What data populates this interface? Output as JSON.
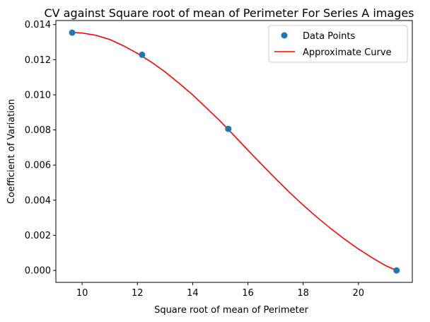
{
  "chart_data": {
    "type": "scatter",
    "title": "CV against Square root of mean of Perimeter For Series A images",
    "xlabel": "Square root of mean of Perimeter",
    "ylabel": "Coefficient of Variation",
    "xlim": [
      9.05,
      21.95
    ],
    "ylim": [
      -0.00068,
      0.01423
    ],
    "x_ticks": [
      10,
      12,
      14,
      16,
      18,
      20
    ],
    "x_tick_labels": [
      "10",
      "12",
      "14",
      "16",
      "18",
      "20"
    ],
    "y_ticks": [
      0.0,
      0.002,
      0.004,
      0.006,
      0.008,
      0.01,
      0.012,
      0.014
    ],
    "y_tick_labels": [
      "0.000",
      "0.002",
      "0.004",
      "0.006",
      "0.008",
      "0.010",
      "0.012",
      "0.014"
    ],
    "grid": false,
    "legend_position": "top-right",
    "series": [
      {
        "name": "Data Points",
        "kind": "scatter",
        "color": "#1f77b4",
        "x": [
          9.64,
          12.17,
          15.29,
          21.38
        ],
        "y": [
          0.01354,
          0.01228,
          0.00806,
          0.0
        ]
      },
      {
        "name": "Approximate Curve",
        "kind": "line",
        "color": "#ff0000",
        "x": [
          9.64,
          10.0,
          10.5,
          11.0,
          11.5,
          12.0,
          12.5,
          13.0,
          13.5,
          14.0,
          14.5,
          15.0,
          15.5,
          16.0,
          16.5,
          17.0,
          17.5,
          18.0,
          18.5,
          19.0,
          19.5,
          20.0,
          20.5,
          21.0,
          21.38
        ],
        "y": [
          0.01355,
          0.01352,
          0.01339,
          0.01315,
          0.01279,
          0.01236,
          0.01187,
          0.01131,
          0.01067,
          0.01,
          0.00925,
          0.0085,
          0.00768,
          0.00685,
          0.00603,
          0.00523,
          0.00445,
          0.00372,
          0.00303,
          0.00238,
          0.00178,
          0.00122,
          0.00072,
          0.00026,
          0.0
        ]
      }
    ]
  }
}
